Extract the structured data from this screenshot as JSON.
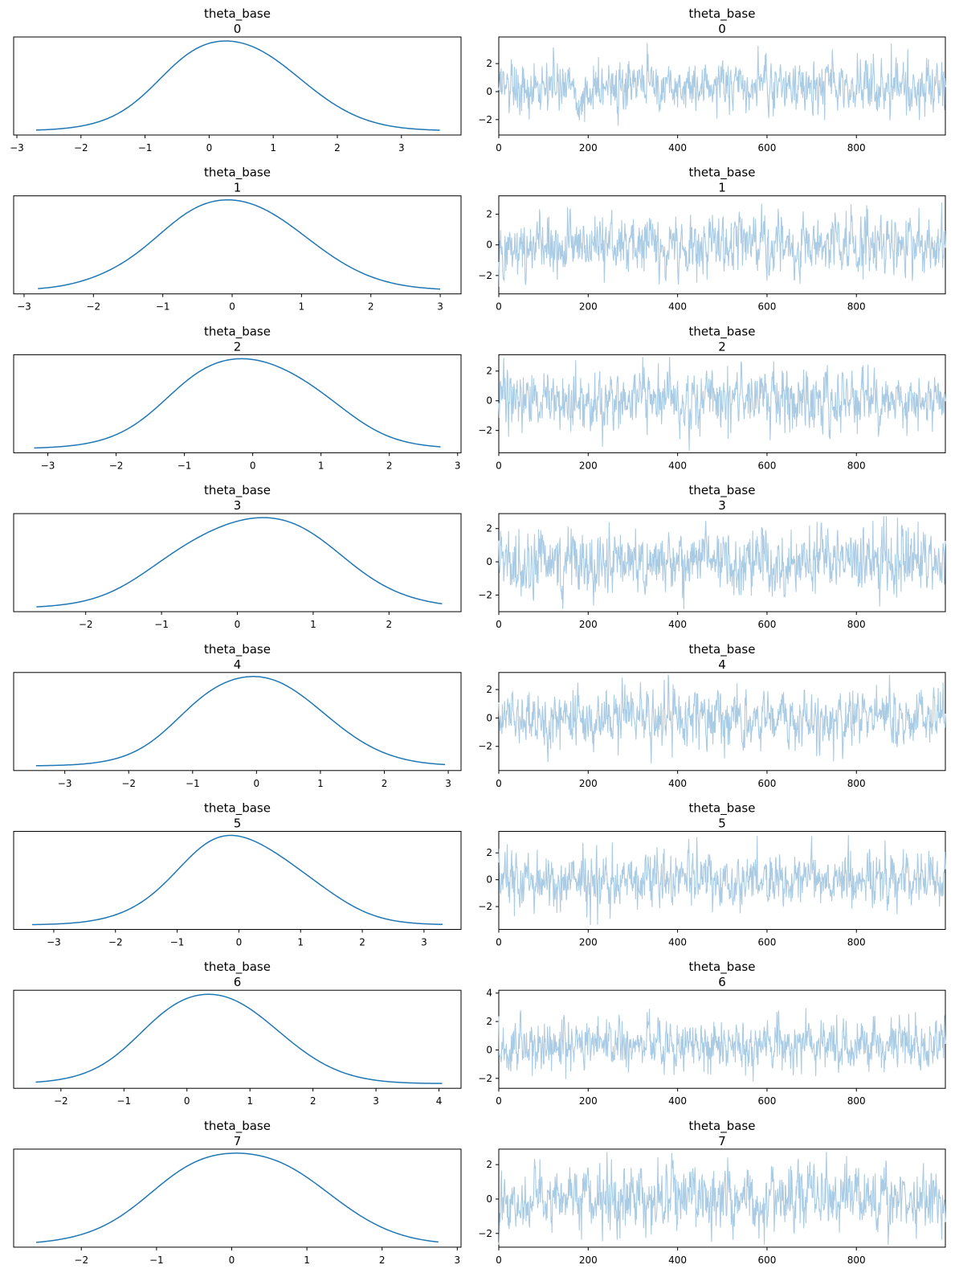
{
  "figure": {
    "colors": {
      "kde_line": "#1f77b4",
      "trace_line": "#a9cbe4",
      "axes": "#000000",
      "background": "#ffffff"
    }
  },
  "chart_data": [
    {
      "type": "line",
      "role": "kde",
      "title": "theta_base",
      "subtitle": "0",
      "xlim": [
        -3.05,
        3.93
      ],
      "xticks": [
        -3,
        -2,
        -1,
        0,
        1,
        2,
        3
      ],
      "peak_x": 0.42,
      "x_range": [
        -2.7,
        3.6
      ],
      "shoulders": [
        [
          -0.4,
          0.8
        ]
      ]
    },
    {
      "type": "line",
      "role": "trace",
      "title": "theta_base",
      "subtitle": "0",
      "xlim": [
        0,
        999
      ],
      "ylim": [
        -3.1,
        3.9
      ],
      "xticks": [
        0,
        200,
        400,
        600,
        800
      ],
      "yticks": [
        -2,
        0,
        2
      ],
      "mean": 0.4,
      "sd": 0.95,
      "draws": 1000
    },
    {
      "type": "line",
      "role": "kde",
      "title": "theta_base",
      "subtitle": "1",
      "xlim": [
        -3.15,
        3.3
      ],
      "xticks": [
        -3,
        -2,
        -1,
        0,
        1,
        2,
        3
      ],
      "peak_x": 0.08,
      "x_range": [
        -2.8,
        3.0
      ],
      "shoulders": [
        [
          -0.7,
          0.7
        ],
        [
          -1.7,
          0.22
        ]
      ]
    },
    {
      "type": "line",
      "role": "trace",
      "title": "theta_base",
      "subtitle": "1",
      "xlim": [
        0,
        999
      ],
      "ylim": [
        -3.2,
        3.2
      ],
      "xticks": [
        0,
        200,
        400,
        600,
        800
      ],
      "yticks": [
        -2,
        0,
        2
      ],
      "mean": 0.05,
      "sd": 0.95,
      "draws": 1000
    },
    {
      "type": "line",
      "role": "kde",
      "title": "theta_base",
      "subtitle": "2",
      "xlim": [
        -3.5,
        3.05
      ],
      "xticks": [
        -3,
        -2,
        -1,
        0,
        1,
        2,
        3
      ],
      "peak_x": -0.05,
      "x_range": [
        -3.2,
        2.75
      ],
      "shoulders": [
        [
          -0.9,
          0.72
        ],
        [
          1.1,
          0.45
        ]
      ]
    },
    {
      "type": "line",
      "role": "trace",
      "title": "theta_base",
      "subtitle": "2",
      "xlim": [
        0,
        999
      ],
      "ylim": [
        -3.5,
        3.1
      ],
      "xticks": [
        0,
        200,
        400,
        600,
        800
      ],
      "yticks": [
        -2,
        0,
        2
      ],
      "mean": 0.0,
      "sd": 1.0,
      "draws": 1000
    },
    {
      "type": "line",
      "role": "kde",
      "title": "theta_base",
      "subtitle": "3",
      "xlim": [
        -2.95,
        2.95
      ],
      "xticks": [
        -2,
        -1,
        0,
        1,
        2
      ],
      "peak_x": 0.25,
      "x_range": [
        -2.65,
        2.7
      ],
      "shoulders": [
        [
          -0.9,
          0.5
        ],
        [
          1.0,
          0.55
        ]
      ]
    },
    {
      "type": "line",
      "role": "trace",
      "title": "theta_base",
      "subtitle": "3",
      "xlim": [
        0,
        999
      ],
      "ylim": [
        -3.0,
        2.9
      ],
      "xticks": [
        0,
        200,
        400,
        600,
        800
      ],
      "yticks": [
        -2,
        0,
        2
      ],
      "mean": 0.0,
      "sd": 1.0,
      "draws": 1000
    },
    {
      "type": "line",
      "role": "kde",
      "title": "theta_base",
      "subtitle": "4",
      "xlim": [
        -3.8,
        3.2
      ],
      "xticks": [
        -3,
        -2,
        -1,
        0,
        1,
        2,
        3
      ],
      "peak_x": 0.05,
      "x_range": [
        -3.45,
        2.95
      ],
      "shoulders": [
        [
          -0.9,
          0.7
        ]
      ]
    },
    {
      "type": "line",
      "role": "trace",
      "title": "theta_base",
      "subtitle": "4",
      "xlim": [
        0,
        999
      ],
      "ylim": [
        -3.7,
        3.2
      ],
      "xticks": [
        0,
        200,
        400,
        600,
        800
      ],
      "yticks": [
        -2,
        0,
        2
      ],
      "mean": -0.1,
      "sd": 1.0,
      "draws": 1000
    },
    {
      "type": "line",
      "role": "kde",
      "title": "theta_base",
      "subtitle": "5",
      "xlim": [
        -3.65,
        3.6
      ],
      "xticks": [
        -3,
        -2,
        -1,
        0,
        1,
        2,
        3
      ],
      "peak_x": 0.05,
      "x_range": [
        -3.35,
        3.3
      ],
      "shoulders": [
        [
          -0.5,
          0.9
        ],
        [
          1.4,
          0.28
        ]
      ]
    },
    {
      "type": "line",
      "role": "trace",
      "title": "theta_base",
      "subtitle": "5",
      "xlim": [
        0,
        999
      ],
      "ylim": [
        -3.7,
        3.6
      ],
      "xticks": [
        0,
        200,
        400,
        600,
        800
      ],
      "yticks": [
        -2,
        0,
        2
      ],
      "mean": -0.1,
      "sd": 1.0,
      "draws": 1000
    },
    {
      "type": "line",
      "role": "kde",
      "title": "theta_base",
      "subtitle": "6",
      "xlim": [
        -2.75,
        4.35
      ],
      "xticks": [
        -2,
        -1,
        0,
        1,
        2,
        3,
        4
      ],
      "peak_x": 0.45,
      "x_range": [
        -2.4,
        4.05
      ],
      "shoulders": [
        [
          -0.4,
          0.6
        ]
      ]
    },
    {
      "type": "line",
      "role": "trace",
      "title": "theta_base",
      "subtitle": "6",
      "xlim": [
        0,
        999
      ],
      "ylim": [
        -2.7,
        4.2
      ],
      "xticks": [
        0,
        200,
        400,
        600,
        800
      ],
      "yticks": [
        -2,
        0,
        2,
        4
      ],
      "mean": 0.4,
      "sd": 0.9,
      "draws": 1000
    },
    {
      "type": "line",
      "role": "kde",
      "title": "theta_base",
      "subtitle": "7",
      "xlim": [
        -2.9,
        3.05
      ],
      "xticks": [
        -2,
        -1,
        0,
        1,
        2,
        3
      ],
      "peak_x": 0.08,
      "x_range": [
        -2.6,
        2.75
      ],
      "shoulders": [
        [
          -0.7,
          0.65
        ],
        [
          0.9,
          0.6
        ],
        [
          1.6,
          0.25
        ]
      ]
    },
    {
      "type": "line",
      "role": "trace",
      "title": "theta_base",
      "subtitle": "7",
      "xlim": [
        0,
        999
      ],
      "ylim": [
        -2.8,
        2.9
      ],
      "xticks": [
        0,
        200,
        400,
        600,
        800
      ],
      "yticks": [
        -2,
        0,
        2
      ],
      "mean": 0.0,
      "sd": 0.95,
      "draws": 1000
    }
  ]
}
